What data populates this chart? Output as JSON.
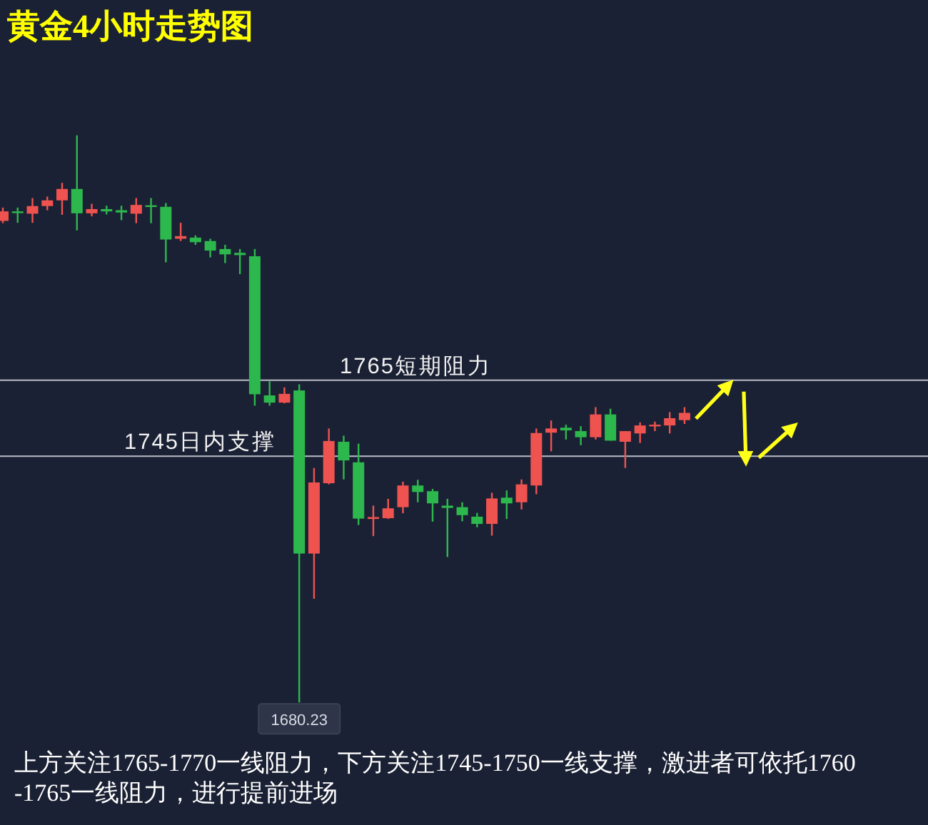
{
  "chart_data": {
    "type": "candlestick",
    "title": "黄金4小时走势图",
    "categories": [
      null,
      null,
      null,
      null,
      null,
      null,
      null,
      null,
      null,
      null,
      null,
      null,
      null,
      null,
      null,
      null,
      null,
      null,
      null,
      null,
      null,
      null,
      null,
      null,
      null,
      null,
      null,
      null,
      null,
      null,
      null,
      null,
      null,
      null,
      null,
      null,
      null,
      null,
      null,
      null,
      null,
      null,
      null,
      null,
      null,
      null,
      null
    ],
    "ohlc": [
      [
        1806.9,
        1810.4,
        1806.3,
        1809.4
      ],
      [
        1809.4,
        1810.4,
        1806.4,
        1809.1
      ],
      [
        1808.8,
        1812.9,
        1806.4,
        1810.8
      ],
      [
        1810.8,
        1813.3,
        1809.7,
        1812.3
      ],
      [
        1812.3,
        1816.9,
        1808.5,
        1815.3
      ],
      [
        1815.3,
        1829.4,
        1804.4,
        1808.9
      ],
      [
        1808.9,
        1811.4,
        1808.1,
        1810.0
      ],
      [
        1810.0,
        1810.9,
        1808.6,
        1809.4
      ],
      [
        1809.7,
        1810.9,
        1807.1,
        1809.1
      ],
      [
        1808.8,
        1812.9,
        1806.3,
        1811.1
      ],
      [
        1811.0,
        1812.9,
        1806.3,
        1810.8
      ],
      [
        1810.6,
        1811.6,
        1796.0,
        1802.0
      ],
      [
        1802.2,
        1806.4,
        1801.6,
        1802.9
      ],
      [
        1802.5,
        1803.1,
        1800.6,
        1801.3
      ],
      [
        1801.6,
        1802.2,
        1797.3,
        1799.1
      ],
      [
        1799.5,
        1800.6,
        1795.8,
        1798.1
      ],
      [
        1798.5,
        1799.5,
        1792.9,
        1797.9
      ],
      [
        1797.6,
        1799.5,
        1758.3,
        1761.3
      ],
      [
        1761.0,
        1764.7,
        1758.3,
        1759.1
      ],
      [
        1759.1,
        1763.1,
        1758.9,
        1761.4
      ],
      [
        1762.3,
        1763.9,
        1680.23,
        1719.4
      ],
      [
        1719.4,
        1741.9,
        1707.5,
        1738.1
      ],
      [
        1737.9,
        1752.3,
        1737.6,
        1749.0
      ],
      [
        1748.8,
        1750.4,
        1738.9,
        1743.9
      ],
      [
        1743.4,
        1748.3,
        1726.9,
        1728.6
      ],
      [
        1728.5,
        1732.0,
        1724.0,
        1729.0
      ],
      [
        1728.7,
        1733.8,
        1728.5,
        1731.3
      ],
      [
        1731.6,
        1738.3,
        1730.0,
        1737.3
      ],
      [
        1737.3,
        1738.8,
        1732.9,
        1735.6
      ],
      [
        1735.8,
        1736.4,
        1727.8,
        1732.6
      ],
      [
        1732.0,
        1733.8,
        1718.5,
        1731.4
      ],
      [
        1731.6,
        1732.9,
        1727.9,
        1729.5
      ],
      [
        1729.1,
        1730.1,
        1726.3,
        1727.2
      ],
      [
        1727.2,
        1735.4,
        1724.1,
        1733.9
      ],
      [
        1734.1,
        1736.0,
        1728.5,
        1732.6
      ],
      [
        1732.9,
        1738.9,
        1731.0,
        1737.6
      ],
      [
        1737.3,
        1752.3,
        1735.0,
        1751.1
      ],
      [
        1751.2,
        1754.4,
        1746.3,
        1752.3
      ],
      [
        1752.5,
        1753.3,
        1749.4,
        1751.8
      ],
      [
        1751.6,
        1752.9,
        1747.9,
        1750.0
      ],
      [
        1750.0,
        1757.9,
        1749.4,
        1756.0
      ],
      [
        1756.0,
        1757.5,
        1749.1,
        1749.1
      ],
      [
        1748.8,
        1751.6,
        1741.9,
        1751.6
      ],
      [
        1751.0,
        1753.9,
        1748.5,
        1753.1
      ],
      [
        1753.0,
        1754.1,
        1751.6,
        1753.3
      ],
      [
        1753.1,
        1756.6,
        1751.0,
        1755.0
      ],
      [
        1754.5,
        1757.9,
        1753.5,
        1756.4
      ]
    ],
    "colors": [
      "#ef5350",
      "#2db84d",
      "#ef5350",
      "#ef5350",
      "#ef5350",
      "#2db84d",
      "#ef5350",
      "#2db84d",
      "#2db84d",
      "#ef5350",
      "#2db84d",
      "#2db84d",
      "#ef5350",
      "#2db84d",
      "#2db84d",
      "#2db84d",
      "#2db84d",
      "#2db84d",
      "#2db84d",
      "#ef5350",
      "#2db84d",
      "#ef5350",
      "#ef5350",
      "#2db84d",
      "#2db84d",
      "#ef5350",
      "#ef5350",
      "#ef5350",
      "#2db84d",
      "#2db84d",
      "#2db84d",
      "#2db84d",
      "#2db84d",
      "#ef5350",
      "#2db84d",
      "#ef5350",
      "#ef5350",
      "#ef5350",
      "#2db84d",
      "#2db84d",
      "#ef5350",
      "#2db84d",
      "#ef5350",
      "#ef5350",
      "#ef5350",
      "#ef5350",
      "#ef5350"
    ],
    "ylim": [
      1648,
      1865
    ],
    "ref_lines": [
      {
        "axis": "y",
        "value": 1765,
        "label": "1765短期阻力",
        "color": "#b9bdc6"
      },
      {
        "axis": "y",
        "value": 1745,
        "label": "1745日内支撑",
        "color": "#b9bdc6"
      }
    ],
    "annotations": [
      {
        "text": "1680.23",
        "y": 1680.23
      },
      "上方关注1765-1770一线阻力，下方关注1745-1750一线支撑，激进者可依托1760-1765一线阻力，进行提前进场"
    ]
  }
}
